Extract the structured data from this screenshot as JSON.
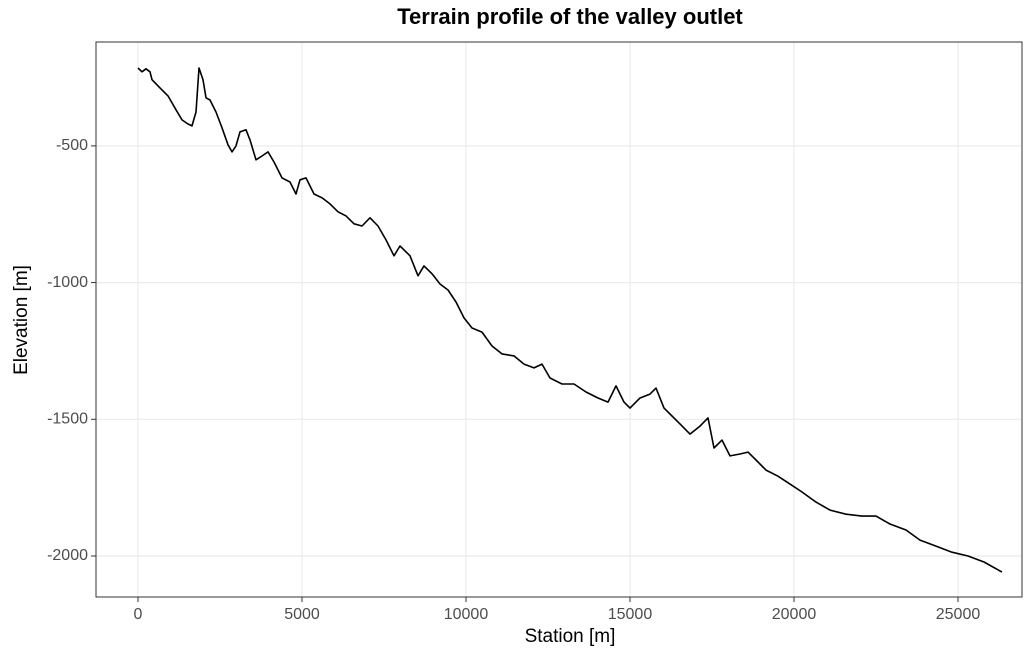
{
  "chart_data": {
    "type": "line",
    "title": "Terrain profile of the valley outlet",
    "x_label": "Station [m]",
    "y_label": "Elevation [m]",
    "x": [
      0,
      122,
      244,
      366,
      427,
      670,
      915,
      1159,
      1341,
      1524,
      1646,
      1768,
      1860,
      1982,
      2073,
      2195,
      2378,
      2561,
      2744,
      2866,
      2988,
      3110,
      3293,
      3415,
      3598,
      3780,
      3963,
      4146,
      4390,
      4634,
      4817,
      4939,
      5122,
      5366,
      5610,
      5854,
      6098,
      6341,
      6585,
      6829,
      7073,
      7317,
      7561,
      7805,
      7988,
      8293,
      8537,
      8720,
      8963,
      9207,
      9451,
      9695,
      9939,
      10183,
      10488,
      10793,
      11098,
      11463,
      11768,
      12073,
      12317,
      12561,
      12927,
      13293,
      13659,
      14024,
      14329,
      14573,
      14817,
      15000,
      15305,
      15610,
      15793,
      16037,
      16281,
      16524,
      16829,
      17134,
      17378,
      17561,
      17805,
      18049,
      18354,
      18598,
      18841,
      19146,
      19512,
      19878,
      20244,
      20671,
      21098,
      21585,
      22073,
      22500,
      22927,
      23415,
      23841,
      24329,
      24817,
      25305,
      25793,
      26341
    ],
    "values": [
      -215,
      -229,
      -218,
      -229,
      -258,
      -288,
      -317,
      -368,
      -405,
      -420,
      -427,
      -376,
      -215,
      -258,
      -324,
      -332,
      -376,
      -434,
      -496,
      -522,
      -500,
      -449,
      -441,
      -478,
      -551,
      -537,
      -522,
      -559,
      -617,
      -632,
      -676,
      -624,
      -617,
      -676,
      -690,
      -712,
      -741,
      -756,
      -785,
      -793,
      -763,
      -793,
      -844,
      -902,
      -866,
      -902,
      -975,
      -939,
      -968,
      -1005,
      -1027,
      -1071,
      -1129,
      -1166,
      -1181,
      -1232,
      -1261,
      -1268,
      -1298,
      -1312,
      -1298,
      -1349,
      -1371,
      -1371,
      -1400,
      -1422,
      -1437,
      -1378,
      -1437,
      -1459,
      -1422,
      -1408,
      -1386,
      -1459,
      -1488,
      -1517,
      -1554,
      -1525,
      -1495,
      -1605,
      -1576,
      -1634,
      -1627,
      -1620,
      -1649,
      -1686,
      -1708,
      -1737,
      -1766,
      -1803,
      -1832,
      -1847,
      -1854,
      -1854,
      -1883,
      -1905,
      -1942,
      -1964,
      -1986,
      -2000,
      -2022,
      -2059
    ],
    "color": "#000000",
    "xlim": [
      -1280,
      26951
    ],
    "xticks": [
      0,
      5000,
      10000,
      15000,
      20000,
      25000
    ],
    "ylim": [
      -2150,
      -120
    ],
    "yticks": [
      -500,
      -1000,
      -1500,
      -2000
    ],
    "grid": true
  }
}
